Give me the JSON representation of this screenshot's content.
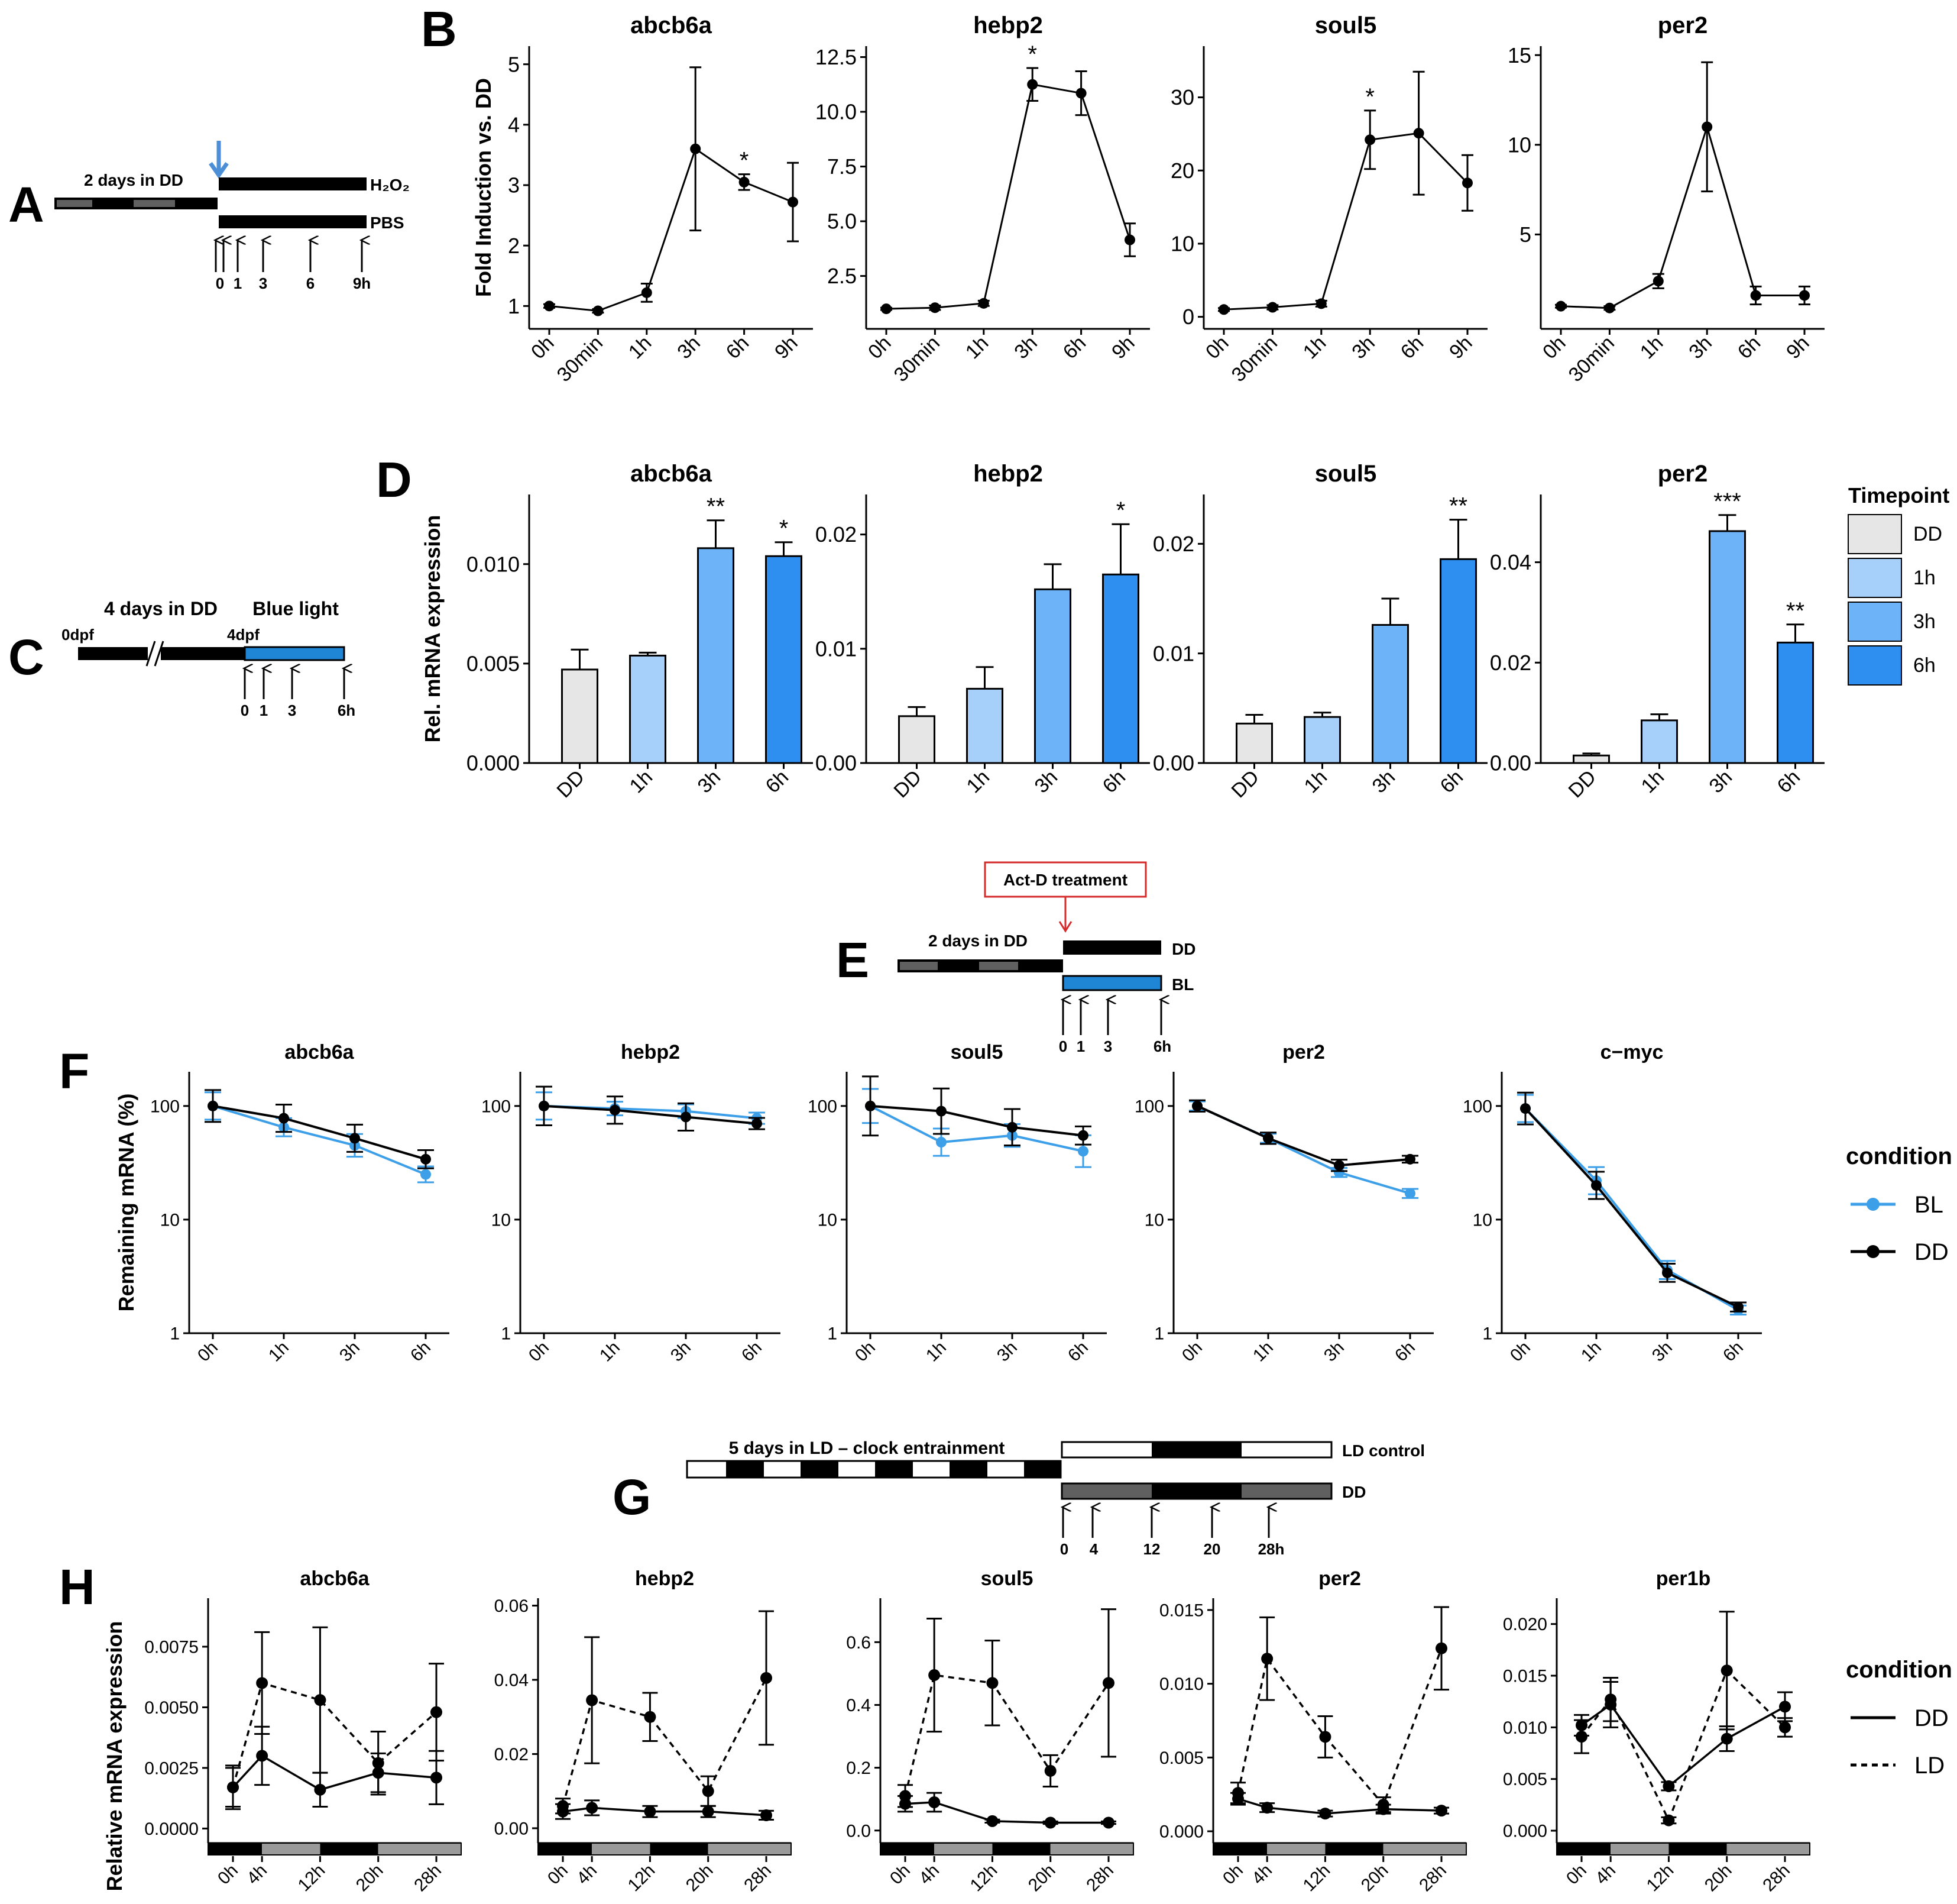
{
  "colors": {
    "black": "#000000",
    "blue_line": "#3c9fe8",
    "light_arrow": "#4d8fd6",
    "bar_dd": "#e6e6e6",
    "bar_1h": "#a6d0fa",
    "bar_3h": "#6cb4f7",
    "bar_6h": "#2f8ff0",
    "panel_gray": "#606060",
    "band_gray": "#9a9a9a",
    "red": "#d62b2b",
    "blue_box": "#1f86d6"
  },
  "panel_letters": {
    "A": "A",
    "B": "B",
    "C": "C",
    "D": "D",
    "E": "E",
    "F": "F",
    "G": "G",
    "H": "H"
  },
  "schematic_a": {
    "days_label": "2 days in DD",
    "top_bar": "H₂O₂",
    "bottom_bar": "PBS",
    "times": [
      "0",
      "1",
      "3",
      "6",
      "9h"
    ]
  },
  "schematic_c": {
    "days_label": "4 days in DD",
    "light_label": "Blue light",
    "start_label": "0dpf",
    "end_label": "4dpf",
    "times": [
      "0",
      "1",
      "3",
      "6h"
    ]
  },
  "schematic_e": {
    "treatment": "Act-D treatment",
    "days_label": "2 days in DD",
    "top_bar": "DD",
    "bottom_bar": "BL",
    "times": [
      "0",
      "1",
      "3",
      "6h"
    ]
  },
  "schematic_g": {
    "days_label": "5 days in LD – clock entrainment",
    "top_bar": "LD control",
    "bottom_bar": "DD",
    "times": [
      "0",
      "4",
      "12",
      "20",
      "28h"
    ]
  },
  "legend_d": {
    "title": "Timepoint",
    "items": [
      "DD",
      "1h",
      "3h",
      "6h"
    ]
  },
  "legend_f": {
    "title": "condition",
    "items": [
      "BL",
      "DD"
    ]
  },
  "legend_h": {
    "title": "condition",
    "items": [
      "DD",
      "LD"
    ]
  },
  "chart_data": [
    {
      "id": "B",
      "type": "line",
      "ylabel": "Fold Induction vs. DD",
      "categories": [
        "0h",
        "30min",
        "1h",
        "3h",
        "6h",
        "9h"
      ],
      "panels": [
        {
          "title": "abcb6a",
          "ylim": [
            0.7,
            5.3
          ],
          "yticks": [
            1,
            2,
            3,
            4,
            5
          ],
          "yticklabels": [
            "1",
            "2",
            "3",
            "4",
            "5"
          ],
          "values": [
            1.0,
            0.92,
            1.22,
            3.6,
            3.05,
            2.72
          ],
          "err": [
            0.03,
            0.03,
            0.15,
            1.35,
            0.13,
            0.65
          ],
          "stars": [
            "",
            "",
            "",
            "",
            "*",
            ""
          ]
        },
        {
          "title": "hebp2",
          "ylim": [
            0.3,
            13.0
          ],
          "yticks": [
            2.5,
            5.0,
            7.5,
            10.0,
            12.5
          ],
          "yticklabels": [
            "2.5",
            "5.0",
            "7.5",
            "10.0",
            "12.5"
          ],
          "values": [
            1.0,
            1.05,
            1.25,
            11.25,
            10.85,
            4.15
          ],
          "err": [
            0.05,
            0.1,
            0.12,
            0.75,
            1.0,
            0.75
          ],
          "stars": [
            "",
            "",
            "",
            "*",
            "",
            ""
          ]
        },
        {
          "title": "soul5",
          "ylim": [
            -1.0,
            37.0
          ],
          "yticks": [
            0,
            10,
            20,
            30
          ],
          "yticklabels": [
            "0",
            "10",
            "20",
            "30"
          ],
          "values": [
            1.0,
            1.3,
            1.8,
            24.2,
            25.1,
            18.3
          ],
          "err": [
            0.2,
            0.3,
            0.4,
            4.0,
            8.4,
            3.8
          ],
          "stars": [
            "",
            "",
            "",
            "*",
            "",
            ""
          ]
        },
        {
          "title": "per2",
          "ylim": [
            0.0,
            15.5
          ],
          "yticks": [
            5,
            10,
            15
          ],
          "yticklabels": [
            "5",
            "10",
            "15"
          ],
          "values": [
            1.0,
            0.9,
            2.4,
            11.0,
            1.6,
            1.6
          ],
          "err": [
            0.08,
            0.1,
            0.4,
            3.6,
            0.5,
            0.5
          ],
          "stars": [
            "",
            "",
            "",
            "",
            "",
            ""
          ]
        }
      ]
    },
    {
      "id": "D",
      "type": "bar",
      "ylabel": "Rel. mRNA expression",
      "categories": [
        "DD",
        "1h",
        "3h",
        "6h"
      ],
      "panels": [
        {
          "title": "abcb6a",
          "ylim": [
            0,
            0.0135
          ],
          "yticks": [
            0,
            0.005,
            0.01
          ],
          "yticklabels": [
            "0.000",
            "0.005",
            "0.010"
          ],
          "values": [
            0.0047,
            0.0054,
            0.0108,
            0.0104
          ],
          "err": [
            0.001,
            0.00015,
            0.0014,
            0.0007
          ],
          "stars": [
            "",
            "",
            "**",
            "*"
          ]
        },
        {
          "title": "hebp2",
          "ylim": [
            0,
            0.0235
          ],
          "yticks": [
            0,
            0.01,
            0.02
          ],
          "yticklabels": [
            "0.00",
            "0.01",
            "0.02"
          ],
          "values": [
            0.0041,
            0.0065,
            0.0152,
            0.0165
          ],
          "err": [
            0.0008,
            0.0019,
            0.0022,
            0.0044
          ],
          "stars": [
            "",
            "",
            "",
            "*"
          ]
        },
        {
          "title": "soul5",
          "ylim": [
            0,
            0.0245
          ],
          "yticks": [
            0,
            0.01,
            0.02
          ],
          "yticklabels": [
            "0.00",
            "0.01",
            "0.02"
          ],
          "values": [
            0.0036,
            0.0042,
            0.0126,
            0.0186
          ],
          "err": [
            0.0008,
            0.0004,
            0.0024,
            0.0036
          ],
          "stars": [
            "",
            "",
            "",
            "**"
          ]
        },
        {
          "title": "per2",
          "ylim": [
            0,
            0.0535
          ],
          "yticks": [
            0,
            0.02,
            0.04
          ],
          "yticklabels": [
            "0.00",
            "0.02",
            "0.04"
          ],
          "values": [
            0.0015,
            0.0085,
            0.0462,
            0.024
          ],
          "err": [
            0.0004,
            0.0012,
            0.0032,
            0.0036
          ],
          "stars": [
            "",
            "",
            "***",
            "**"
          ]
        }
      ]
    },
    {
      "id": "F",
      "type": "line",
      "scale": "log",
      "ylabel": "Remaining mRNA (%)",
      "categories": [
        "0h",
        "1h",
        "3h",
        "6h"
      ],
      "yticks": [
        1,
        10,
        100
      ],
      "yticklabels": [
        "1",
        "10",
        "100"
      ],
      "panels": [
        {
          "title": "abcb6a",
          "BL": [
            100,
            65,
            45,
            25
          ],
          "BL_err": [
            0.12,
            0.08,
            0.1,
            0.07
          ],
          "DD": [
            100,
            78,
            52,
            34
          ],
          "DD_err": [
            0.14,
            0.12,
            0.12,
            0.08
          ]
        },
        {
          "title": "hebp2",
          "BL": [
            100,
            95,
            90,
            78
          ],
          "BL_err": [
            0.12,
            0.06,
            0.06,
            0.05
          ],
          "DD": [
            100,
            92,
            80,
            70
          ],
          "DD_err": [
            0.17,
            0.12,
            0.12,
            0.05
          ]
        },
        {
          "title": "soul5",
          "BL": [
            100,
            48,
            55,
            40
          ],
          "BL_err": [
            0.15,
            0.12,
            0.1,
            0.14
          ],
          "DD": [
            100,
            90,
            65,
            55
          ],
          "DD_err": [
            0.26,
            0.2,
            0.16,
            0.08
          ]
        },
        {
          "title": "per2",
          "BL": [
            100,
            52,
            26,
            17
          ],
          "BL_err": [
            0.04,
            0.04,
            0.04,
            0.04
          ],
          "DD": [
            100,
            52,
            30,
            34
          ],
          "DD_err": [
            0.05,
            0.05,
            0.05,
            0.03
          ]
        },
        {
          "title": "c−myc",
          "BL": [
            95,
            22,
            3.6,
            1.6
          ],
          "BL_err": [
            0.12,
            0.12,
            0.08,
            0.04
          ],
          "DD": [
            95,
            20,
            3.4,
            1.7
          ],
          "DD_err": [
            0.14,
            0.12,
            0.08,
            0.04
          ]
        }
      ]
    },
    {
      "id": "H",
      "type": "line",
      "ylabel": "Relative mRNA expression",
      "categories": [
        "0h",
        "4h",
        "12h",
        "20h",
        "28h"
      ],
      "panels": [
        {
          "title": "abcb6a",
          "ylim": [
            -0.0006,
            0.0095
          ],
          "yticks": [
            0,
            0.0025,
            0.005,
            0.0075
          ],
          "yticklabels": [
            "0.0000",
            "0.0025",
            "0.0050",
            "0.0075"
          ],
          "DD": [
            0.0017,
            0.003,
            0.0016,
            0.0023,
            0.0021
          ],
          "DD_err": [
            0.0008,
            0.0012,
            0.0007,
            0.0008,
            0.0011
          ],
          "LD": [
            0.0017,
            0.006,
            0.0053,
            0.0027,
            0.0048
          ],
          "LD_err": [
            0.0009,
            0.0021,
            0.003,
            0.0013,
            0.002
          ]
        },
        {
          "title": "hebp2",
          "ylim": [
            -0.004,
            0.062
          ],
          "yticks": [
            0,
            0.02,
            0.04,
            0.06
          ],
          "yticklabels": [
            "0.00",
            "0.02",
            "0.04",
            "0.06"
          ],
          "DD": [
            0.0045,
            0.0055,
            0.0045,
            0.0045,
            0.0035
          ],
          "DD_err": [
            0.002,
            0.002,
            0.0015,
            0.0015,
            0.0012
          ],
          "LD": [
            0.006,
            0.0345,
            0.03,
            0.01,
            0.0405
          ],
          "LD_err": [
            0.002,
            0.017,
            0.0065,
            0.004,
            0.018
          ]
        },
        {
          "title": "soul5",
          "ylim": [
            -0.04,
            0.74
          ],
          "yticks": [
            0,
            0.2,
            0.4,
            0.6
          ],
          "yticklabels": [
            "0.0",
            "0.2",
            "0.4",
            "0.6"
          ],
          "DD": [
            0.085,
            0.09,
            0.03,
            0.025,
            0.025
          ],
          "DD_err": [
            0.025,
            0.03,
            0.005,
            0.004,
            0.004
          ],
          "LD": [
            0.11,
            0.495,
            0.47,
            0.19,
            0.47
          ],
          "LD_err": [
            0.035,
            0.18,
            0.135,
            0.05,
            0.235
          ]
        },
        {
          "title": "per2",
          "ylim": [
            -0.0008,
            0.0158
          ],
          "yticks": [
            0,
            0.005,
            0.01,
            0.015
          ],
          "yticklabels": [
            "0.000",
            "0.005",
            "0.010",
            "0.015"
          ],
          "DD": [
            0.0022,
            0.0016,
            0.0012,
            0.0015,
            0.0014
          ],
          "DD_err": [
            0.0004,
            0.0003,
            0.0002,
            0.0003,
            0.0002
          ],
          "LD": [
            0.0026,
            0.0117,
            0.0064,
            0.0018,
            0.0124
          ],
          "LD_err": [
            0.0007,
            0.0028,
            0.0014,
            0.0005,
            0.0028
          ]
        },
        {
          "title": "per1b",
          "ylim": [
            -0.0012,
            0.0225
          ],
          "yticks": [
            0,
            0.005,
            0.01,
            0.015,
            0.02
          ],
          "yticklabels": [
            "0.000",
            "0.005",
            "0.010",
            "0.015",
            "0.020"
          ],
          "DD": [
            0.0102,
            0.0122,
            0.0043,
            0.0089,
            0.012
          ],
          "DD_err": [
            0.001,
            0.0022,
            0.0004,
            0.0012,
            0.0014
          ],
          "LD": [
            0.0091,
            0.0127,
            0.001,
            0.0155,
            0.01
          ],
          "LD_err": [
            0.0016,
            0.0021,
            0.0003,
            0.0057,
            0.0009
          ]
        }
      ]
    }
  ]
}
